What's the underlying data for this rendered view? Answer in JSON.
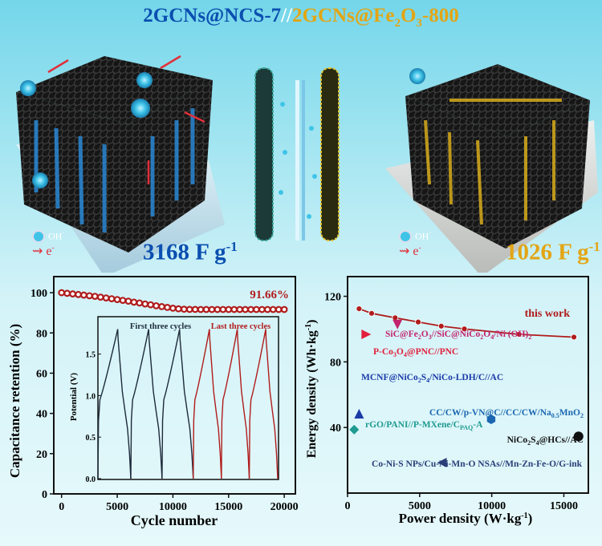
{
  "header": {
    "title_left": "2GCNs@NCS-7",
    "title_sep": "//",
    "title_right_prefix": "2GCNs@Fe",
    "title_right_sub1": "2",
    "title_right_mid": "O",
    "title_right_sub2": "3",
    "title_right_suffix": "-800"
  },
  "illustration": {
    "left_capacitance": "3168 F g",
    "left_capacitance_sup": "-1",
    "right_capacitance": "1026 F g",
    "right_capacitance_sup": "-1",
    "legend_ion": "OH",
    "legend_ion_sup": "-",
    "legend_electron": "e",
    "legend_electron_sup": "-",
    "colors": {
      "cathode": "#1a7fd0",
      "anode": "#e3b51c",
      "ion": "#3fc4e8",
      "electron": "#e0303a"
    }
  },
  "chart_data": [
    {
      "type": "scatter",
      "xlabel": "Cycle number",
      "ylabel": "Capacitance retention (%)",
      "xlim": [
        -700,
        21000
      ],
      "ylim": [
        0,
        108
      ],
      "xticks": [
        "0",
        "5000",
        "10000",
        "15000",
        "20000"
      ],
      "yticks": [
        "0",
        "20",
        "40",
        "60",
        "80",
        "100"
      ],
      "annotation": "91.66%",
      "color": "#b01c1c",
      "x": [
        0,
        500,
        1000,
        1500,
        2000,
        2500,
        3000,
        3500,
        4000,
        4500,
        5000,
        5500,
        6000,
        6500,
        7000,
        7500,
        8000,
        8500,
        9000,
        9500,
        10000,
        10500,
        11000,
        11500,
        12000,
        12500,
        13000,
        13500,
        14000,
        14500,
        15000,
        15500,
        16000,
        16500,
        17000,
        17500,
        18000,
        18500,
        19000,
        19500,
        20000
      ],
      "y": [
        100,
        99.7,
        99.4,
        99.1,
        98.8,
        98.5,
        98.2,
        97.8,
        97.4,
        97.0,
        96.6,
        96.2,
        95.8,
        95.3,
        94.9,
        94.4,
        94.0,
        93.5,
        93.1,
        92.7,
        92.3,
        92.0,
        91.8,
        91.7,
        91.7,
        91.66,
        91.66,
        91.66,
        91.66,
        91.66,
        91.66,
        91.66,
        91.66,
        91.66,
        91.66,
        91.66,
        91.66,
        91.66,
        91.66,
        91.66,
        91.66
      ],
      "inset": {
        "type": "line",
        "ylabel": "Potential (V)",
        "ylim": [
          0,
          1.95
        ],
        "yticks": [
          "0.0",
          "0.5",
          "1.0",
          "1.5"
        ],
        "label_first": "First three cycles",
        "label_last": "Last three cycles",
        "color_first": "#1d2a3a",
        "color_last": "#b01c1c",
        "peak_potential": 1.8,
        "cycles": [
          {
            "group": "first",
            "start": 0,
            "peak": 71,
            "end": 118
          },
          {
            "group": "first",
            "start": 118,
            "peak": 182,
            "end": 230
          },
          {
            "group": "first",
            "start": 230,
            "peak": 293,
            "end": 342
          },
          {
            "group": "last",
            "start": 342,
            "peak": 400,
            "end": 443
          },
          {
            "group": "last",
            "start": 443,
            "peak": 500,
            "end": 543
          },
          {
            "group": "last",
            "start": 543,
            "peak": 602,
            "end": 645
          }
        ]
      }
    },
    {
      "type": "scatter",
      "xlabel": "Power density (W·kg",
      "xlabel_sup": "-1",
      "xlabel_end": ")",
      "ylabel": "Energy density (Wh·kg",
      "ylabel_sup": "-1",
      "ylabel_end": ")",
      "xlim": [
        0,
        16700
      ],
      "ylim": [
        0,
        132
      ],
      "xticks": [
        "0",
        "5000",
        "10000",
        "15000"
      ],
      "yticks": [
        "40",
        "80",
        "120"
      ],
      "series": [
        {
          "name": "this work",
          "marker": "circle-line",
          "color": "#b01c1c",
          "x": [
            800,
            1670,
            3300,
            4900,
            6500,
            8100,
            11900,
            15700
          ],
          "y": [
            112.4,
            109.6,
            106.9,
            104.3,
            101.8,
            100.1,
            96.8,
            95.1
          ]
        },
        {
          "name": "SiC@Fe2O3//SiC@NiCo2O4/Ni (OH)2",
          "parts": [
            "SiC@Fe",
            "2",
            "O",
            "3",
            "//SiC@NiCo",
            "2",
            "O",
            "4",
            "/Ni (OH)",
            "2"
          ],
          "marker": "triangle-down",
          "color": "#c2246e",
          "x": [
            3460
          ],
          "y": [
            102.8
          ]
        },
        {
          "name": "P-Co3O4@PNC//PNC",
          "parts": [
            "P-Co",
            "3",
            "O",
            "4",
            "@PNC//PNC"
          ],
          "marker": "triangle-right",
          "color": "#e0203c",
          "x": [
            1300
          ],
          "y": [
            96.8
          ]
        },
        {
          "name": "MCNF@NiCo2S4/NiCo-LDH/C//AC",
          "parts": [
            "MCNF@NiCo",
            "2",
            "S",
            "4",
            "/NiCo-LDH/C//AC"
          ],
          "marker": "triangle-up",
          "color": "#1a3aa8",
          "x": [
            800
          ],
          "y": [
            48.4
          ]
        },
        {
          "name": "CC/CW/p-VN@C//CC/CW/Na0.5MnO2",
          "parts": [
            "CC/CW/p-VN@C//CC/CW/Na",
            "0.5",
            "MnO",
            "2"
          ],
          "marker": "hexagon",
          "color": "#1a66b0",
          "x": [
            9960
          ],
          "y": [
            45
          ]
        },
        {
          "name": "rGO/PANI//P-MXene/CPAQ-A",
          "parts": [
            "rGO/PANI//P-MXene/C",
            "PAQ",
            "-A"
          ],
          "marker": "diamond",
          "color": "#1f9a90",
          "x": [
            460
          ],
          "y": [
            38.7
          ]
        },
        {
          "name": "NiCo2S4@HCs//AC",
          "parts": [
            "NiCo",
            "2",
            "S",
            "4",
            "@HCs//AC"
          ],
          "marker": "circle",
          "color": "#111111",
          "x": [
            16020
          ],
          "y": [
            34.6
          ]
        },
        {
          "name": "Co-Ni-S NPs/Cu-Ni-Mn-O NSAs//Mn-Zn-Fe-O/G-ink",
          "parts": [
            "Co-Ni-S NPs/Cu-Ni-Mn-O NSAs//Mn-Zn-Fe-O/G-ink"
          ],
          "marker": "triangle-left",
          "color": "#2a3f78",
          "x": [
            6540
          ],
          "y": [
            18.6
          ]
        }
      ]
    }
  ]
}
